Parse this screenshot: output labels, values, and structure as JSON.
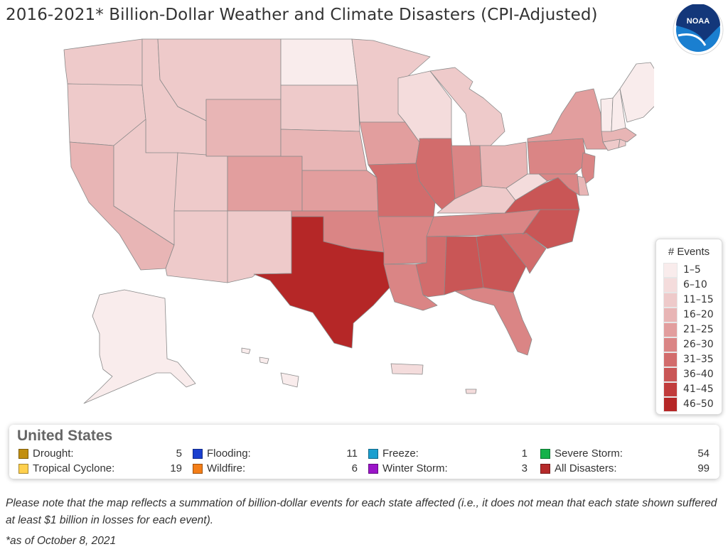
{
  "title": "2016-2021* Billion-Dollar Weather and Climate Disasters (CPI-Adjusted)",
  "logo": {
    "text": "NOAA",
    "icon": "noaa-logo-icon",
    "colors": {
      "blue": "#1a7fd0",
      "navy": "#13377a"
    }
  },
  "legend": {
    "title": "# Events",
    "bins": [
      {
        "label": "1–5",
        "color": "#f9ecec"
      },
      {
        "label": "6–10",
        "color": "#f4dcdc"
      },
      {
        "label": "11–15",
        "color": "#eecaca"
      },
      {
        "label": "16–20",
        "color": "#e8b5b5"
      },
      {
        "label": "21–25",
        "color": "#e29e9e"
      },
      {
        "label": "26–30",
        "color": "#da8585"
      },
      {
        "label": "31–35",
        "color": "#d26c6c"
      },
      {
        "label": "36–40",
        "color": "#c95656"
      },
      {
        "label": "41–45",
        "color": "#c13c3c"
      },
      {
        "label": "46–50",
        "color": "#b52727"
      }
    ]
  },
  "summary": {
    "region": "United States",
    "rows": [
      [
        {
          "name": "Drought:",
          "count": "5",
          "color": "#c28f10"
        },
        {
          "name": "Flooding:",
          "count": "11",
          "color": "#1a3fcf"
        },
        {
          "name": "Freeze:",
          "count": "1",
          "color": "#1a9fcf"
        },
        {
          "name": "Severe Storm:",
          "count": "54",
          "color": "#15b24a"
        }
      ],
      [
        {
          "name": "Tropical Cyclone:",
          "count": "19",
          "color": "#ffd04d"
        },
        {
          "name": "Wildfire:",
          "count": "6",
          "color": "#f47e18"
        },
        {
          "name": "Winter Storm:",
          "count": "3",
          "color": "#9b15c9"
        },
        {
          "name": "All Disasters:",
          "count": "99",
          "color": "#b52a2a"
        }
      ]
    ]
  },
  "note": "Please note that the map reflects a summation of billion-dollar events for each state affected (i.e., it does not mean that each state shown suffered at least $1 billion in losses for each event).",
  "as_of": "*as of October 8, 2021",
  "map": {
    "states": [
      {
        "id": "WA",
        "bin": 2
      },
      {
        "id": "OR",
        "bin": 2
      },
      {
        "id": "CA",
        "bin": 3
      },
      {
        "id": "ID",
        "bin": 2
      },
      {
        "id": "NV",
        "bin": 2
      },
      {
        "id": "MT",
        "bin": 2
      },
      {
        "id": "WY",
        "bin": 3
      },
      {
        "id": "UT",
        "bin": 2
      },
      {
        "id": "AZ",
        "bin": 2
      },
      {
        "id": "CO",
        "bin": 4
      },
      {
        "id": "NM",
        "bin": 2
      },
      {
        "id": "ND",
        "bin": 0
      },
      {
        "id": "SD",
        "bin": 2
      },
      {
        "id": "NE",
        "bin": 3
      },
      {
        "id": "KS",
        "bin": 4
      },
      {
        "id": "OK",
        "bin": 5
      },
      {
        "id": "TX",
        "bin": 9
      },
      {
        "id": "MN",
        "bin": 2
      },
      {
        "id": "IA",
        "bin": 4
      },
      {
        "id": "MO",
        "bin": 6
      },
      {
        "id": "AR",
        "bin": 5
      },
      {
        "id": "LA",
        "bin": 5
      },
      {
        "id": "WI",
        "bin": 1
      },
      {
        "id": "IL",
        "bin": 6
      },
      {
        "id": "MI",
        "bin": 2
      },
      {
        "id": "IN",
        "bin": 5
      },
      {
        "id": "OH",
        "bin": 3
      },
      {
        "id": "KY",
        "bin": 2
      },
      {
        "id": "TN",
        "bin": 5
      },
      {
        "id": "MS",
        "bin": 6
      },
      {
        "id": "AL",
        "bin": 7
      },
      {
        "id": "GA",
        "bin": 7
      },
      {
        "id": "FL",
        "bin": 5
      },
      {
        "id": "SC",
        "bin": 6
      },
      {
        "id": "NC",
        "bin": 7
      },
      {
        "id": "VA",
        "bin": 7
      },
      {
        "id": "WV",
        "bin": 1
      },
      {
        "id": "PA",
        "bin": 5
      },
      {
        "id": "NY",
        "bin": 4
      },
      {
        "id": "NJ",
        "bin": 5
      },
      {
        "id": "DE",
        "bin": 3
      },
      {
        "id": "MD",
        "bin": 5
      },
      {
        "id": "CT",
        "bin": 2
      },
      {
        "id": "RI",
        "bin": 2
      },
      {
        "id": "MA",
        "bin": 3
      },
      {
        "id": "VT",
        "bin": 0
      },
      {
        "id": "NH",
        "bin": 0
      },
      {
        "id": "ME",
        "bin": 0
      },
      {
        "id": "AK",
        "bin": 0
      },
      {
        "id": "HI",
        "bin": 0
      },
      {
        "id": "PR",
        "bin": 1
      }
    ]
  }
}
